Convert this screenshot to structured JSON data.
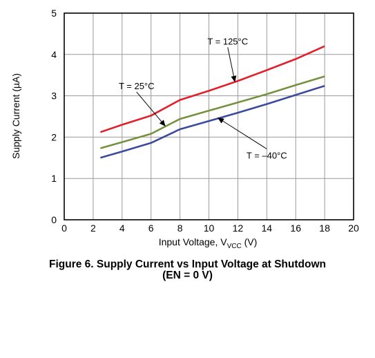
{
  "chart_data": {
    "type": "line",
    "xlabel": "Input Voltage, V",
    "xlabel_sub": "VCC",
    "xlabel_unit": " (V)",
    "ylabel": "Supply Current (µA)",
    "xlim": [
      0,
      20
    ],
    "ylim": [
      0,
      5
    ],
    "xticks": [
      0,
      2,
      4,
      6,
      8,
      10,
      12,
      14,
      16,
      18,
      20
    ],
    "yticks": [
      0,
      1,
      2,
      3,
      4,
      5
    ],
    "grid": true,
    "series": [
      {
        "name": "T = 125°C",
        "color": "#e0202a",
        "x": [
          2.5,
          4,
          6,
          8,
          10,
          12,
          14,
          16,
          18
        ],
        "y": [
          2.12,
          2.3,
          2.52,
          2.9,
          3.12,
          3.36,
          3.62,
          3.89,
          4.2
        ]
      },
      {
        "name": "T = 25°C",
        "color": "#76913f",
        "x": [
          2.5,
          4,
          6,
          8,
          10,
          12,
          14,
          16,
          18
        ],
        "y": [
          1.73,
          1.88,
          2.08,
          2.44,
          2.64,
          2.84,
          3.04,
          3.26,
          3.47
        ]
      },
      {
        "name": "T = –40°C",
        "color": "#3a4a9c",
        "x": [
          2.5,
          4,
          6,
          8,
          10,
          12,
          14,
          16,
          18
        ],
        "y": [
          1.5,
          1.65,
          1.86,
          2.19,
          2.39,
          2.59,
          2.8,
          3.02,
          3.24
        ]
      }
    ],
    "annotations": [
      {
        "series": 0,
        "text": "T = 125°C",
        "text_at": [
          11.3,
          4.24
        ],
        "points_to": [
          11.8,
          3.33
        ]
      },
      {
        "series": 1,
        "text": "T = 25°C",
        "text_at": [
          5.0,
          3.16
        ],
        "points_to": [
          7.0,
          2.26
        ]
      },
      {
        "series": 2,
        "text": "T = –40°C",
        "text_at": [
          14.0,
          1.48
        ],
        "points_to": [
          10.6,
          2.47
        ]
      }
    ]
  },
  "caption": {
    "line1": "Figure 6. Supply Current vs Input Voltage at Shutdown",
    "line2": "(EN = 0 V)"
  }
}
